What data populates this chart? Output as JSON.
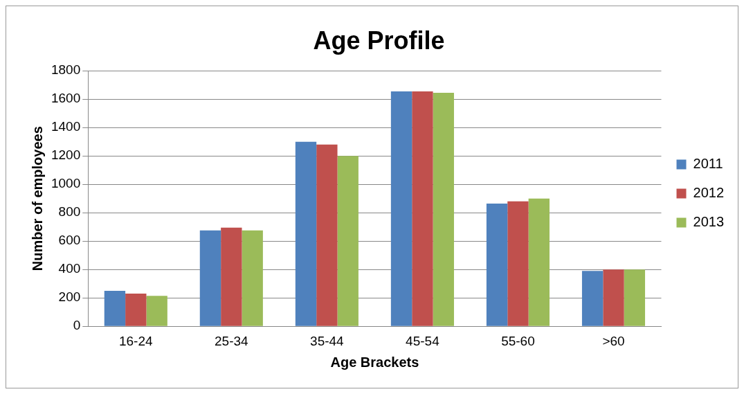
{
  "chart_data": {
    "type": "bar",
    "title": "Age Profile",
    "xlabel": "Age Brackets",
    "ylabel": "Number of employees",
    "categories": [
      "16-24",
      "25-34",
      "35-44",
      "45-54",
      "55-60",
      ">60"
    ],
    "series": [
      {
        "name": "2011",
        "color": "#4f81bd",
        "values": [
          250,
          675,
          1300,
          1655,
          865,
          390
        ]
      },
      {
        "name": "2012",
        "color": "#c0504d",
        "values": [
          230,
          695,
          1280,
          1655,
          880,
          400
        ]
      },
      {
        "name": "2013",
        "color": "#9bbb59",
        "values": [
          215,
          675,
          1200,
          1645,
          900,
          400
        ]
      }
    ],
    "ylim": [
      0,
      1800
    ],
    "yticks": [
      0,
      200,
      400,
      600,
      800,
      1000,
      1200,
      1400,
      1600,
      1800
    ],
    "grid": "y",
    "legend": "right"
  }
}
